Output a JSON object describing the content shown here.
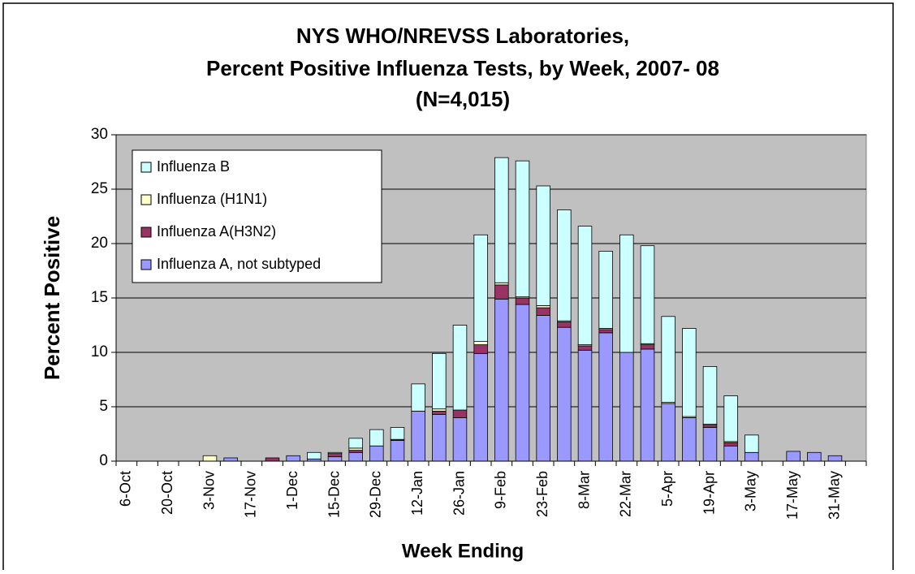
{
  "chart_data": {
    "type": "bar",
    "stacked": true,
    "title": [
      "NYS WHO/NREVSS Laboratories,",
      "Percent Positive Influenza  Tests, by Week, 2007- 08",
      "(N=4,015)"
    ],
    "y_label": "Percent Positive",
    "x_label": "Week Ending",
    "categories": [
      "6-Oct",
      null,
      "20-Oct",
      null,
      "3-Nov",
      null,
      "17-Nov",
      null,
      "1-Dec",
      null,
      "15-Dec",
      null,
      "29-Dec",
      null,
      "12-Jan",
      null,
      "26-Jan",
      null,
      "9-Feb",
      null,
      "23-Feb",
      null,
      "8-Mar",
      null,
      "22-Mar",
      null,
      "5-Apr",
      null,
      "19-Apr",
      null,
      "3-May",
      null,
      "17-May",
      null,
      "31-May",
      null
    ],
    "series": [
      {
        "name": "Influenza A, not subtyped",
        "color": "#9999ff",
        "values": [
          0,
          0,
          0,
          0,
          0,
          0.3,
          0,
          0,
          0.5,
          0.2,
          0.4,
          0.8,
          1.4,
          1.9,
          4.6,
          4.3,
          4.0,
          9.9,
          14.9,
          14.4,
          13.4,
          12.3,
          10.2,
          11.8,
          10.0,
          10.3,
          5.3,
          4.0,
          3.1,
          1.4,
          0.8,
          0,
          0.9,
          0.8,
          0.5,
          0
        ]
      },
      {
        "name": "Influenza A(H3N2)",
        "color": "#993366",
        "values": [
          0,
          0,
          0,
          0,
          0,
          0,
          0,
          0.3,
          0,
          0,
          0.3,
          0.2,
          0,
          0.1,
          0,
          0.3,
          0.7,
          0.8,
          1.3,
          0.6,
          0.7,
          0.5,
          0.4,
          0.3,
          0,
          0.4,
          0,
          0,
          0.2,
          0.3,
          0,
          0,
          0,
          0,
          0,
          0
        ]
      },
      {
        "name": "Influenza (H1N1)",
        "color": "#ffffcc",
        "values": [
          0,
          0,
          0,
          0,
          0.5,
          0,
          0,
          0,
          0,
          0,
          0,
          0.2,
          0,
          0,
          0,
          0.2,
          0,
          0.3,
          0.2,
          0.1,
          0.2,
          0.1,
          0.1,
          0.1,
          0,
          0.1,
          0.1,
          0.1,
          0.1,
          0.1,
          0,
          0,
          0,
          0,
          0,
          0
        ]
      },
      {
        "name": "Influenza B",
        "color": "#ccffff",
        "values": [
          0,
          0,
          0,
          0,
          0,
          0,
          0,
          0,
          0,
          0.6,
          0.1,
          0.9,
          1.5,
          1.1,
          2.5,
          5.1,
          7.8,
          9.8,
          11.5,
          12.5,
          11.0,
          10.2,
          10.9,
          7.1,
          10.8,
          9.0,
          7.9,
          8.1,
          5.3,
          4.2,
          1.6,
          0,
          0,
          0,
          0,
          0
        ]
      }
    ],
    "ylim": [
      0,
      30
    ],
    "yticks": [
      0,
      5,
      10,
      15,
      20,
      25,
      30
    ],
    "grid": true,
    "legend": "upper left",
    "plot_background": "#c0c0c0"
  }
}
